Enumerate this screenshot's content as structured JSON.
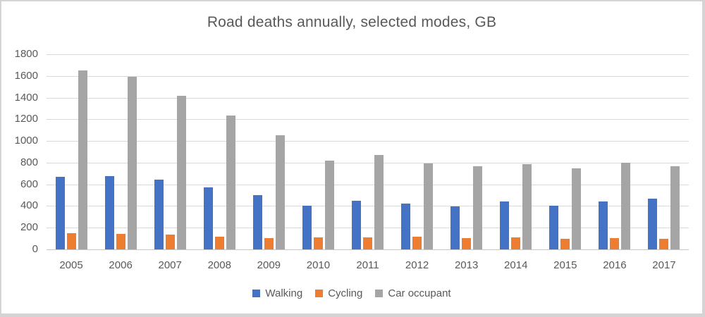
{
  "chart": {
    "title": "Road deaths annually, selected modes, GB",
    "colors": {
      "accent_walking": "#4472C4",
      "accent_cycling": "#ED7D31",
      "accent_car_occupant": "#A5A5A5",
      "gridline": "#D9D9D9",
      "axis_line": "#C6C6C6",
      "text": "#595959",
      "frame_border": "#D5D3D3"
    }
  },
  "chart_data": {
    "type": "bar",
    "title": "Road deaths annually, selected modes, GB",
    "xlabel": "",
    "ylabel": "",
    "categories": [
      "2005",
      "2006",
      "2007",
      "2008",
      "2009",
      "2010",
      "2011",
      "2012",
      "2013",
      "2014",
      "2015",
      "2016",
      "2017"
    ],
    "series": [
      {
        "name": "Walking",
        "key": "walking",
        "color": "#4472C4",
        "values": [
          670,
          675,
          645,
          570,
          500,
          400,
          450,
          420,
          395,
          445,
          405,
          445,
          465
        ]
      },
      {
        "name": "Cycling",
        "key": "cycling",
        "color": "#ED7D31",
        "values": [
          148,
          146,
          136,
          115,
          104,
          112,
          108,
          120,
          107,
          113,
          100,
          102,
          101
        ]
      },
      {
        "name": "Car occupant",
        "key": "car-occupant",
        "color": "#A5A5A5",
        "values": [
          1650,
          1590,
          1415,
          1235,
          1050,
          820,
          870,
          790,
          770,
          785,
          745,
          800,
          765
        ]
      }
    ],
    "ylim": [
      0,
      1800
    ],
    "y_ticks": [
      1800,
      1600,
      1400,
      1200,
      1000,
      800,
      600,
      400,
      200,
      0
    ],
    "grid": true,
    "legend_position": "bottom-center"
  }
}
